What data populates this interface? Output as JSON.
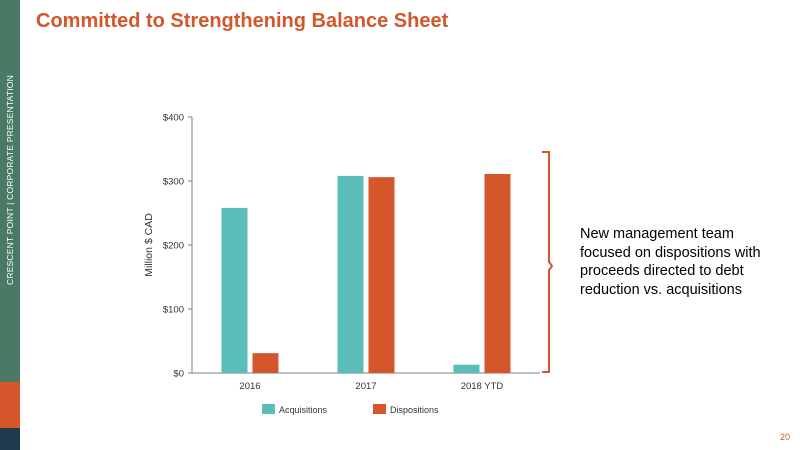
{
  "sidebar": {
    "text": "CRESCENT POINT   |   CORPORATE PRESENTATION",
    "color": "#4a7a66",
    "accent_orange": "#d4562a",
    "accent_navy": "#1f3a4d"
  },
  "slide": {
    "title": "Committed to Strengthening Balance Sheet",
    "callout": "New management team focused on dispositions with proceeds directed to debt reduction vs. acquisitions",
    "page_number": "20",
    "accent_color": "#d4562a"
  },
  "chart_data": {
    "type": "bar",
    "categories": [
      "2016",
      "2017",
      "2018 YTD"
    ],
    "series": [
      {
        "name": "Acquisitions",
        "color": "#5bbdb8",
        "values": [
          258,
          308,
          13
        ]
      },
      {
        "name": "Dispositions",
        "color": "#d4562a",
        "values": [
          31,
          306,
          311
        ]
      }
    ],
    "ylabel": "Million $ CAD",
    "ylim": [
      0,
      400
    ],
    "yticks": [
      0,
      100,
      200,
      300,
      400
    ],
    "ytick_labels": [
      "$0",
      "$100",
      "$200",
      "$300",
      "$400"
    ],
    "grid": false,
    "legend": "bottom"
  }
}
